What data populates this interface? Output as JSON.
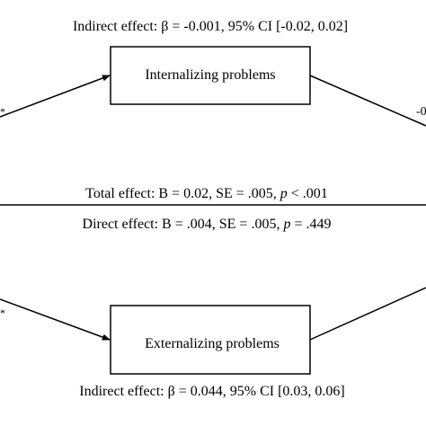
{
  "mediators": {
    "internalizing": {
      "box_label": "Internalizing problems",
      "indirect_effect": "Indirect effect: β = -0.001, 95% CI [-0.02, 0.02]"
    },
    "externalizing": {
      "box_label": "Externalizing problems",
      "indirect_effect": "Indirect effect: β = 0.044, 95% CI [0.03, 0.06]"
    }
  },
  "total_effect": {
    "prefix": "Total effect: B = 0.02, SE = .005, ",
    "p_symbol": "p",
    "suffix": " < .001"
  },
  "direct_effect": {
    "prefix": "Direct effect: B = .004, SE = .005, ",
    "p_symbol": "p",
    "suffix": " = .449"
  },
  "edge_fragments": {
    "top_left": "*",
    "top_right": "-0",
    "bottom_left": "*"
  }
}
